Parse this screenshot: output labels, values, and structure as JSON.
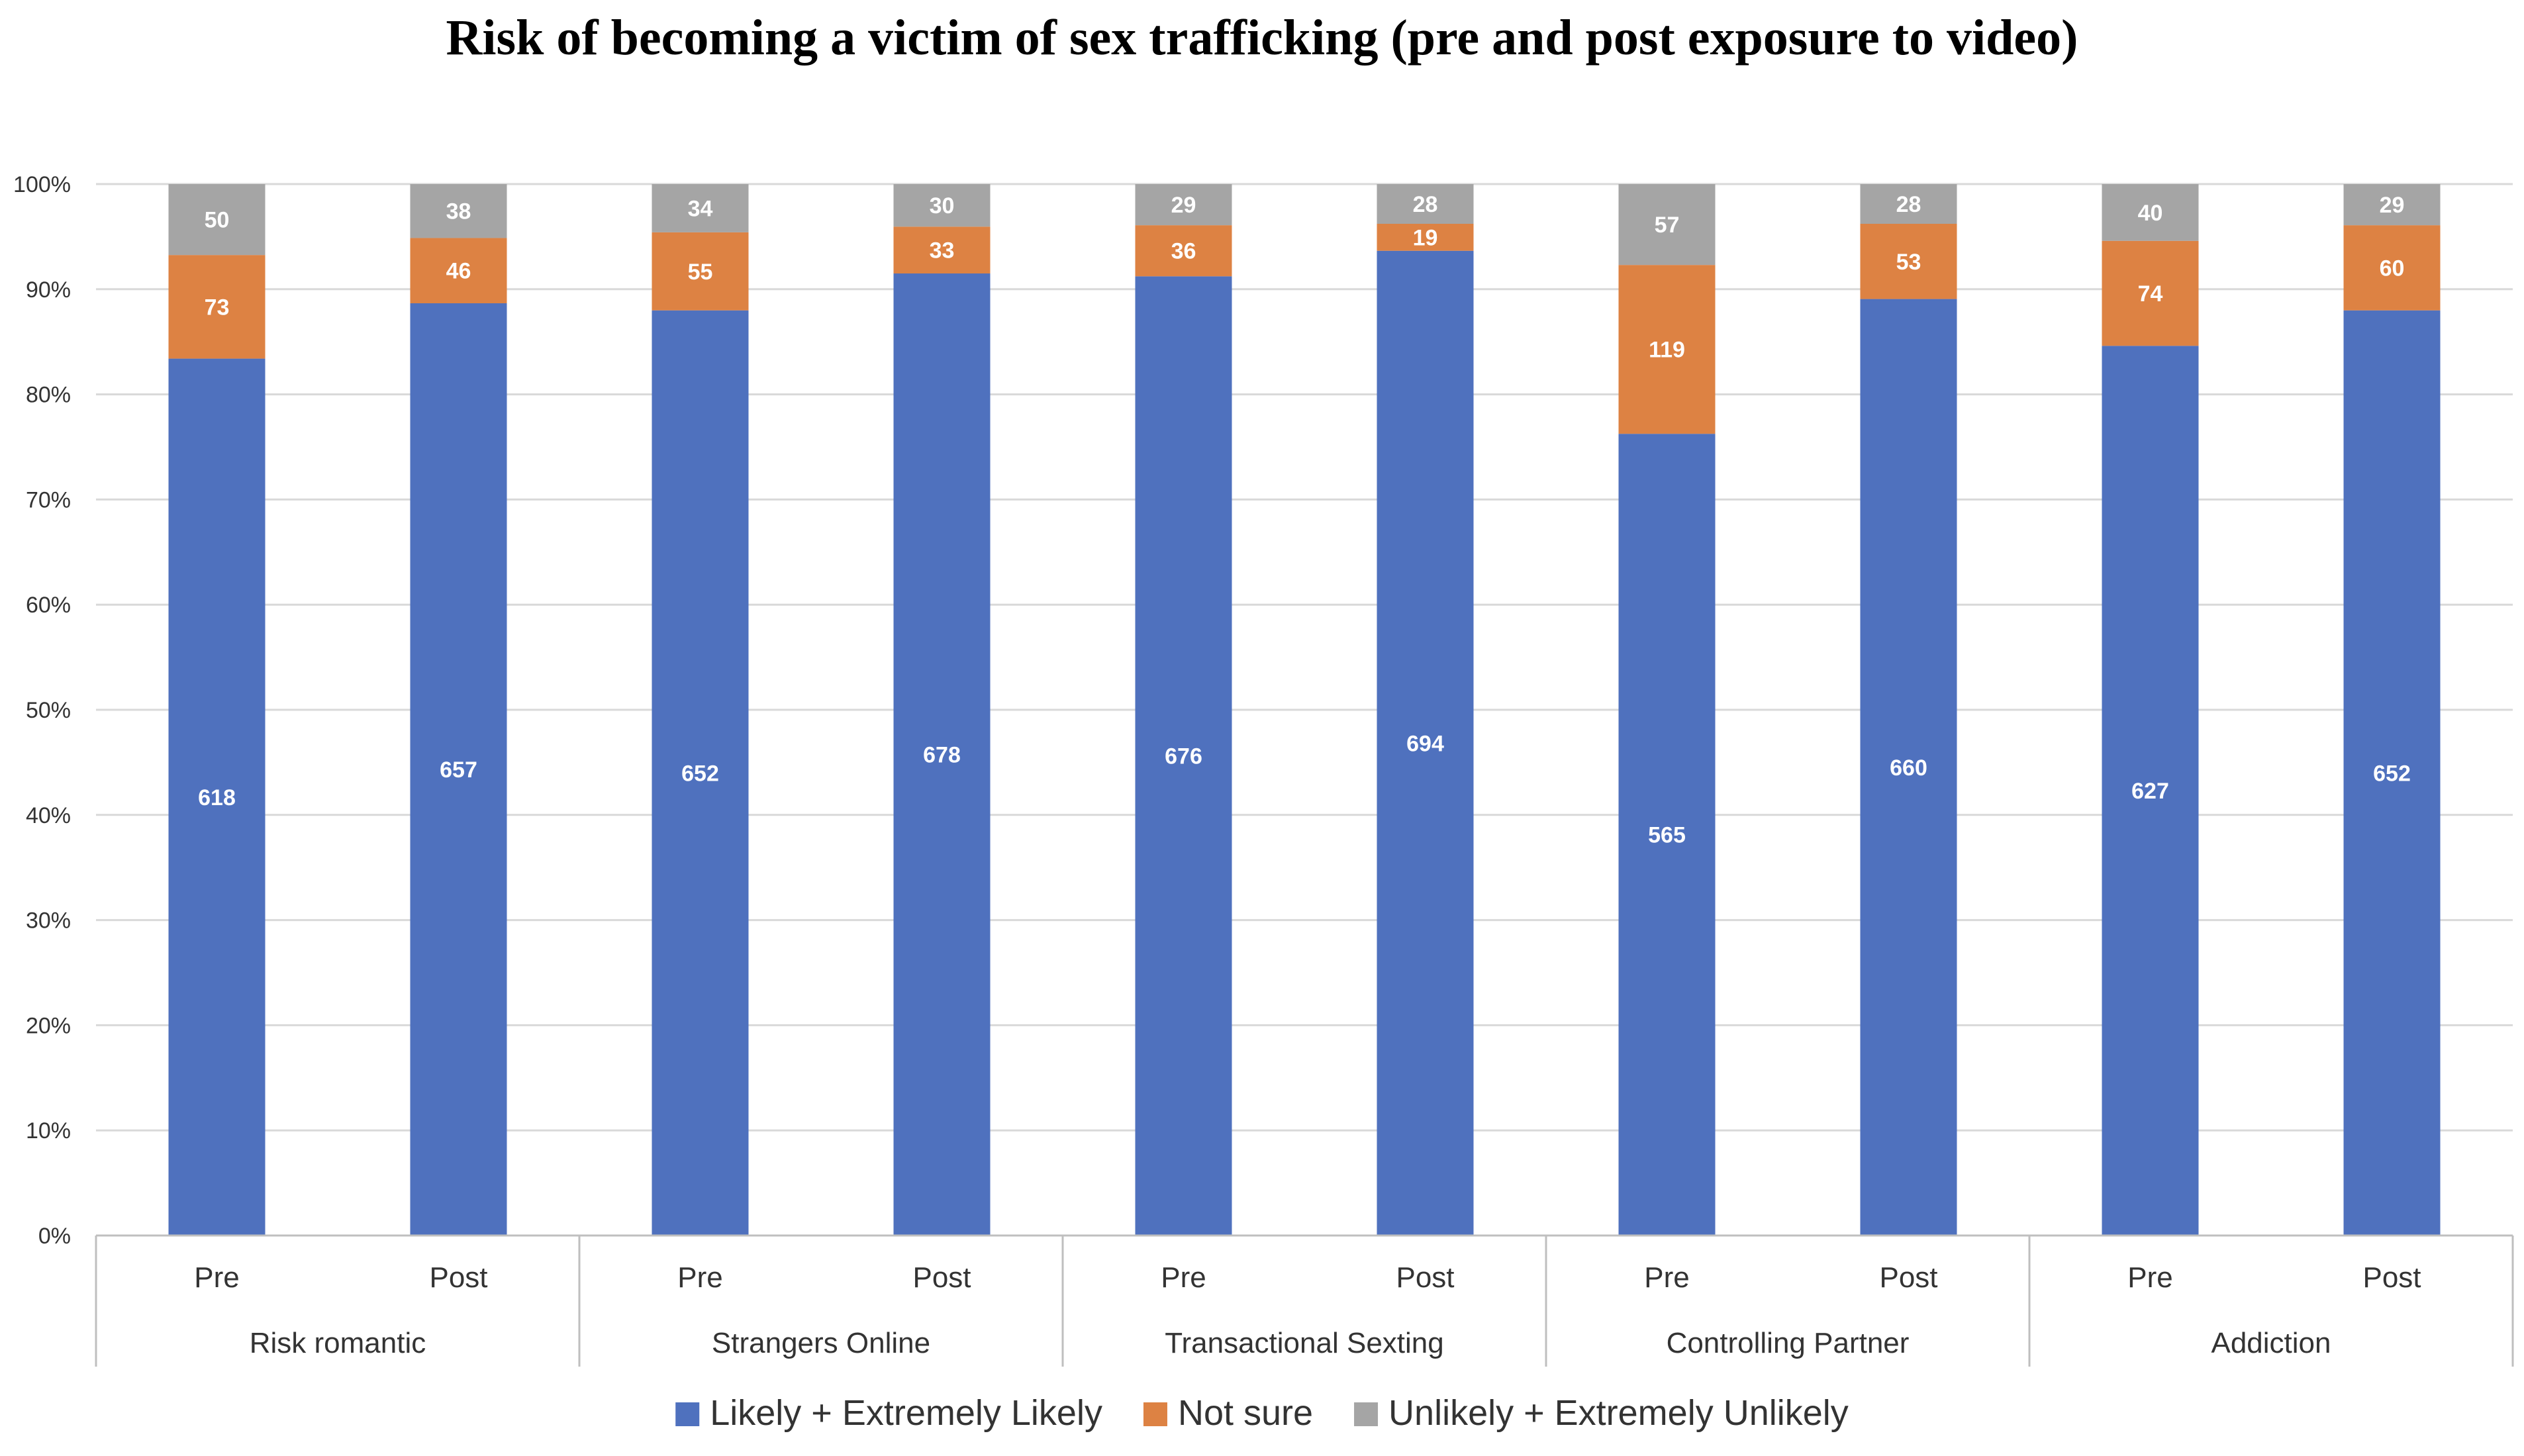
{
  "chart_data": {
    "type": "bar",
    "stacked": "percent",
    "title": "Risk of becoming a victim of sex trafficking (pre and post exposure to video)",
    "groups": [
      "Risk romantic",
      "Strangers Online",
      "Transactional Sexting",
      "Controlling Partner",
      "Addiction"
    ],
    "subcategories": [
      "Pre",
      "Post"
    ],
    "y_ticks": [
      "0%",
      "10%",
      "20%",
      "30%",
      "40%",
      "50%",
      "60%",
      "70%",
      "80%",
      "90%",
      "100%"
    ],
    "ylim": [
      0,
      100
    ],
    "series": [
      {
        "name": "Likely + Extremely Likely",
        "color": "#4f71be",
        "values": [
          618,
          657,
          652,
          678,
          676,
          694,
          565,
          660,
          627,
          652
        ]
      },
      {
        "name": "Not sure",
        "color": "#dd8243",
        "values": [
          73,
          46,
          55,
          33,
          36,
          19,
          119,
          53,
          74,
          60
        ]
      },
      {
        "name": "Unlikely + Extremely Unlikely",
        "color": "#a5a5a5",
        "values": [
          50,
          38,
          34,
          30,
          29,
          28,
          57,
          28,
          40,
          29
        ]
      }
    ],
    "legend_position": "bottom",
    "grid": true
  }
}
